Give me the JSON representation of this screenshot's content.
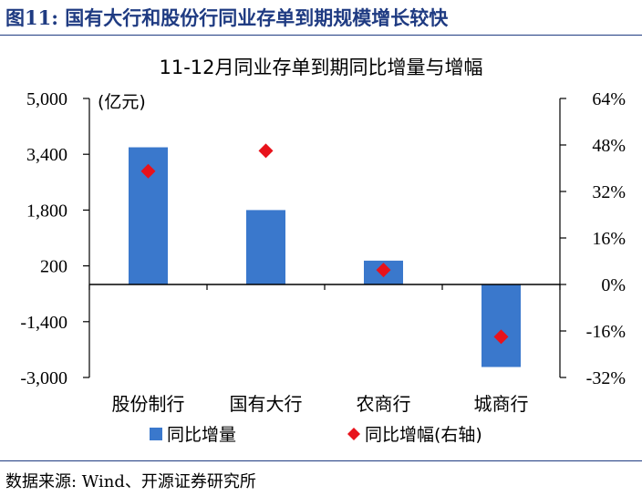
{
  "figure_title": "图11:  国有大行和股份行同业存单到期规模增长较快",
  "source": "数据来源:  Wind、开源证券研究所",
  "colors": {
    "bar": "#3A78CC",
    "marker": "#E8121B",
    "title": "#1F3B82",
    "axis": "#000000"
  },
  "chart_data": {
    "type": "bar",
    "title": "11-12月同业存单到期同比增量与增幅",
    "unit_label": "(亿元)",
    "categories": [
      "股份制行",
      "国有大行",
      "农商行",
      "城商行"
    ],
    "series": [
      {
        "name": "同比增量",
        "type": "bar",
        "axis": "left",
        "values": [
          3600,
          1800,
          350,
          -2700
        ]
      },
      {
        "name": "同比增幅(右轴)",
        "type": "scatter",
        "marker": "diamond",
        "axis": "right",
        "values": [
          39,
          46,
          5,
          -18
        ]
      }
    ],
    "y_left": {
      "ylim": [
        -3000,
        5000
      ],
      "ticks": [
        -3000,
        -1400,
        200,
        1800,
        3400,
        5000
      ],
      "tick_labels": [
        "-3,000",
        "-1,400",
        "200",
        "1,800",
        "3,400",
        "5,000"
      ]
    },
    "y_right": {
      "ylim": [
        -32,
        64
      ],
      "ticks": [
        -32,
        -16,
        0,
        16,
        32,
        48,
        64
      ],
      "tick_labels": [
        "-32%",
        "-16%",
        "0%",
        "16%",
        "32%",
        "48%",
        "64%"
      ]
    },
    "legend": {
      "position": "bottom",
      "items": [
        "同比增量",
        "同比增幅(右轴)"
      ]
    },
    "grid": false
  }
}
